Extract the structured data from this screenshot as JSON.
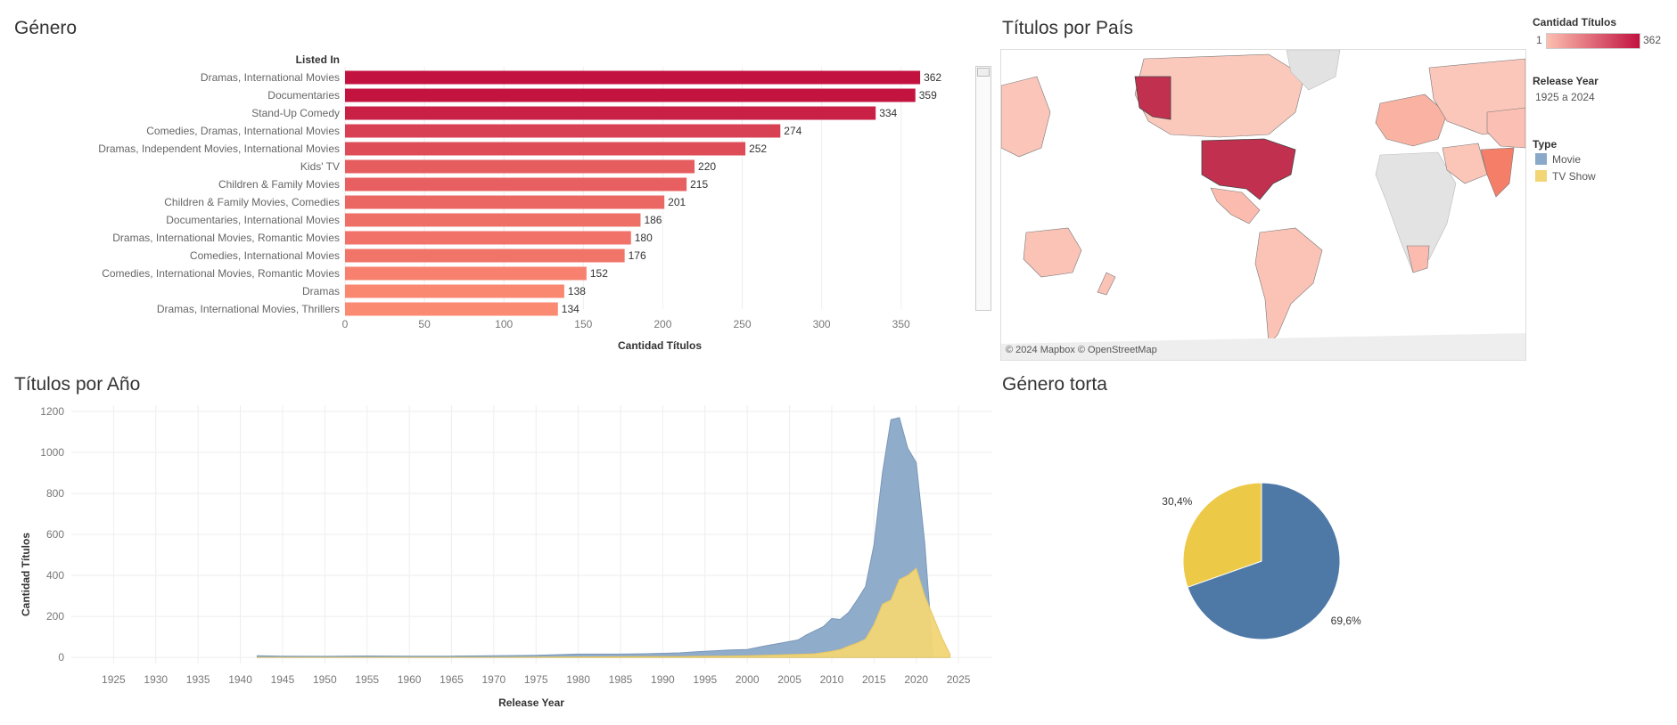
{
  "dashboard": {
    "genre_title": "Género",
    "country_title": "Títulos por País",
    "year_title": "Títulos por Año",
    "pie_title": "Género torta",
    "map_credit": "© 2024 Mapbox © OpenStreetMap"
  },
  "legends": {
    "count_title": "Cantidad Títulos",
    "count_min": "1",
    "count_max": "362",
    "count_color_low": "#fcbfb0",
    "count_color_high": "#c2123f",
    "release_title": "Release Year",
    "release_range": "1925 a 2024",
    "type_title": "Type",
    "types": [
      {
        "label": "Movie",
        "color": "#8aa8c8"
      },
      {
        "label": "TV Show",
        "color": "#f2d575"
      }
    ]
  },
  "chart_data": [
    {
      "type": "bar",
      "orientation": "horizontal",
      "title": "Género",
      "category_header": "Listed In",
      "xlabel": "Cantidad Títulos",
      "xlim": [
        0,
        380
      ],
      "xticks": [
        "0",
        "50",
        "100",
        "150",
        "200",
        "250",
        "300",
        "350"
      ],
      "categories": [
        "Dramas, International Movies",
        "Documentaries",
        "Stand-Up Comedy",
        "Comedies, Dramas, International Movies",
        "Dramas, Independent Movies, International Movies",
        "Kids' TV",
        "Children & Family Movies",
        "Children & Family Movies, Comedies",
        "Documentaries, International Movies",
        "Dramas, International Movies, Romantic Movies",
        "Comedies, International Movies",
        "Comedies, International Movies, Romantic Movies",
        "Dramas",
        "Dramas, International Movies, Thrillers"
      ],
      "values": [
        362,
        359,
        334,
        274,
        252,
        220,
        215,
        201,
        186,
        180,
        176,
        152,
        138,
        134
      ],
      "value_labels": [
        "362",
        "359",
        "334",
        "274",
        "252",
        "220",
        "215",
        "201",
        "186",
        "180",
        "176",
        "152",
        "138",
        "134"
      ],
      "color_low": "#fb8a72",
      "color_high": "#c2123f"
    },
    {
      "type": "area",
      "title": "Títulos por Año",
      "xlabel": "Release Year",
      "ylabel": "Cantidad Títulos",
      "xlim": [
        1920,
        2029
      ],
      "ylim": [
        -30,
        1230
      ],
      "xticks": [
        "1925",
        "1930",
        "1935",
        "1940",
        "1945",
        "1950",
        "1955",
        "1960",
        "1965",
        "1970",
        "1975",
        "1980",
        "1985",
        "1990",
        "1995",
        "2000",
        "2005",
        "2010",
        "2015",
        "2020",
        "2025"
      ],
      "yticks": [
        "0",
        "200",
        "400",
        "600",
        "800",
        "1000",
        "1200"
      ],
      "grid": true,
      "x": [
        1942,
        1945,
        1950,
        1955,
        1960,
        1965,
        1970,
        1975,
        1980,
        1985,
        1988,
        1990,
        1992,
        1994,
        1996,
        1998,
        2000,
        2002,
        2004,
        2006,
        2007,
        2008,
        2009,
        2010,
        2011,
        2012,
        2013,
        2014,
        2015,
        2016,
        2017,
        2018,
        2019,
        2020,
        2021,
        2022,
        2023,
        2024
      ],
      "series": [
        {
          "name": "TV Show",
          "color": "#f2d575",
          "values": [
            0,
            0,
            0,
            0,
            0,
            0,
            0,
            1,
            2,
            3,
            4,
            4,
            4,
            5,
            6,
            7,
            8,
            10,
            12,
            15,
            16,
            18,
            24,
            30,
            38,
            55,
            70,
            90,
            160,
            260,
            280,
            380,
            400,
            435,
            300,
            200,
            100,
            15
          ]
        },
        {
          "name": "Movie",
          "color": "#8aa8c8",
          "values": [
            8,
            6,
            5,
            7,
            6,
            6,
            8,
            10,
            16,
            16,
            18,
            20,
            22,
            28,
            32,
            36,
            38,
            55,
            70,
            85,
            110,
            130,
            150,
            190,
            185,
            220,
            280,
            345,
            550,
            900,
            1160,
            1170,
            1020,
            950,
            560,
            0,
            0,
            0
          ]
        }
      ]
    },
    {
      "type": "pie",
      "title": "Género torta",
      "categories": [
        "Movie",
        "TV Show"
      ],
      "values": [
        69.6,
        30.4
      ],
      "labels": [
        "69,6%",
        "30,4%"
      ],
      "colors": [
        "#4e79a7",
        "#edc948"
      ]
    }
  ]
}
